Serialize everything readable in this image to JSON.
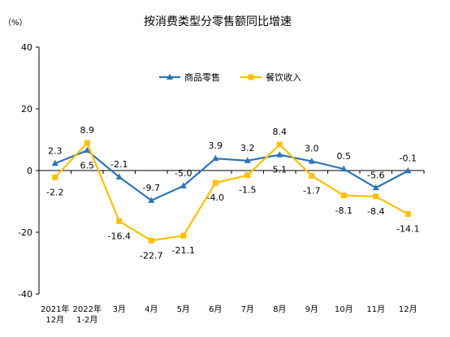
{
  "chart_data": {
    "type": "line",
    "title": "按消费类型分零售额同比增速",
    "unit_label": "（%）",
    "categories": [
      [
        "2021年",
        "12月"
      ],
      [
        "2022年",
        "1-2月"
      ],
      [
        "3月"
      ],
      [
        "4月"
      ],
      [
        "5月"
      ],
      [
        "6月"
      ],
      [
        "7月"
      ],
      [
        "8月"
      ],
      [
        "9月"
      ],
      [
        "10月"
      ],
      [
        "11月"
      ],
      [
        "12月"
      ]
    ],
    "ylim": [
      -40,
      40
    ],
    "yticks": [
      40,
      20,
      0,
      -20,
      -40
    ],
    "legend_position": "top-center",
    "grid": false,
    "series": [
      {
        "name": "商品零售",
        "color": "#2E75B6",
        "marker": "triangle",
        "values": [
          2.3,
          6.5,
          -2.1,
          -9.7,
          -5.0,
          3.9,
          3.2,
          5.1,
          3.0,
          0.5,
          -5.6,
          -0.1
        ],
        "labels": [
          "2.3",
          "6.5",
          "-2.1",
          "-9.7",
          "-5.0",
          "3.9",
          "3.2",
          "5.1",
          "3.0",
          "0.5",
          "-5.6",
          "-0.1"
        ]
      },
      {
        "name": "餐饮收入",
        "color": "#FFC000",
        "marker": "square",
        "values": [
          -2.2,
          8.9,
          -16.4,
          -22.7,
          -21.1,
          -4.0,
          -1.5,
          8.4,
          -1.7,
          -8.1,
          -8.4,
          -14.1
        ],
        "labels": [
          "-2.2",
          "8.9",
          "-16.4",
          "-22.7",
          "-21.1",
          "-4.0",
          "-1.5",
          "8.4",
          "-1.7",
          "-8.1",
          "-8.4",
          "-14.1"
        ]
      }
    ]
  }
}
